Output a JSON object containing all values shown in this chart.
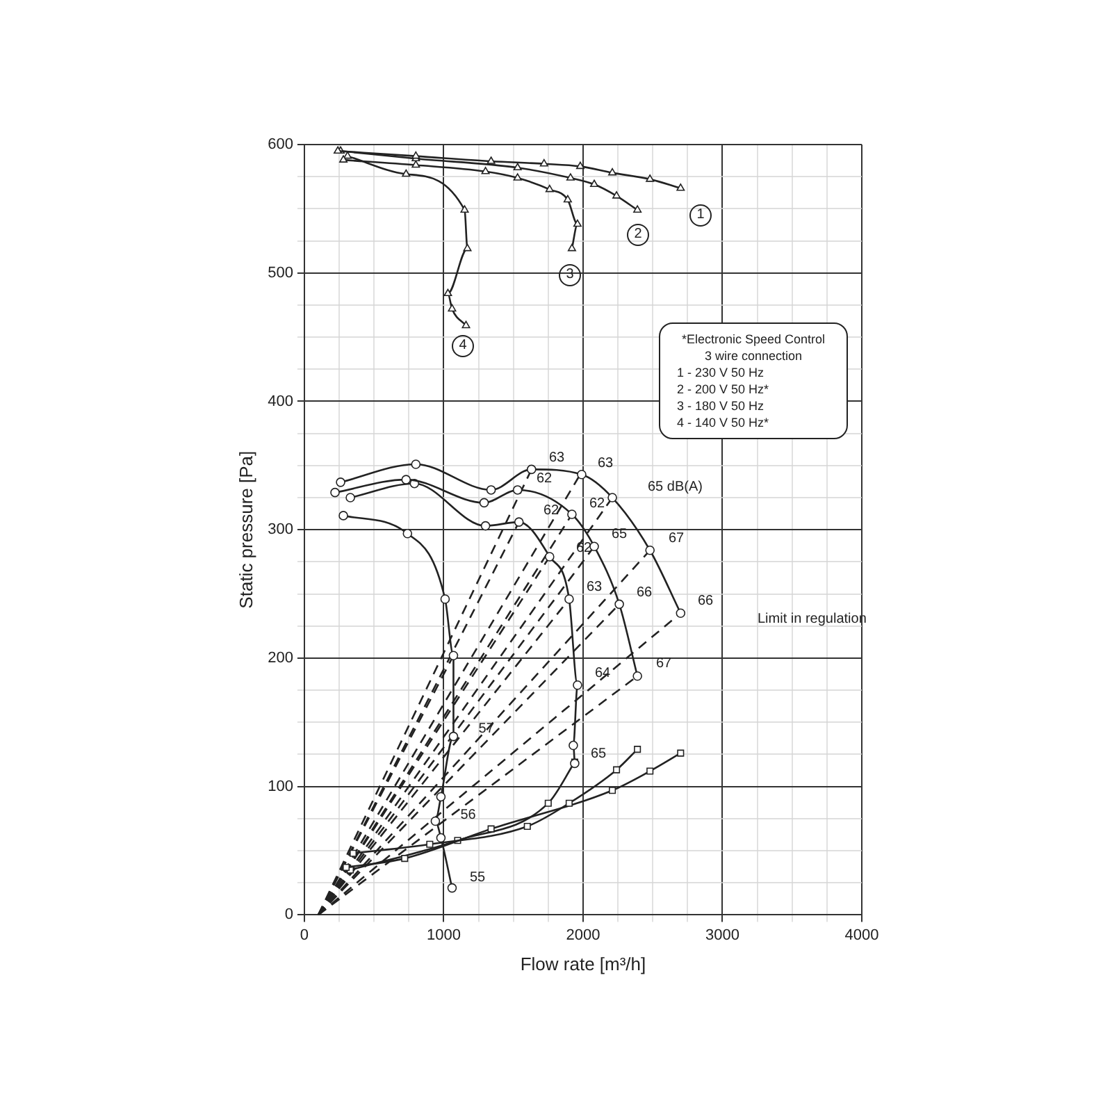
{
  "chart_data": {
    "type": "line",
    "xlabel": "Flow rate [m³/h]",
    "ylabel": "Static pressure [Pa]",
    "xlim": [
      0,
      4000
    ],
    "ylim": [
      0,
      600
    ],
    "xticks": [
      0,
      {
        "value": 250,
        "label": null
      },
      {
        "value": 500,
        "label": null
      },
      {
        "value": 750,
        "label": null
      },
      1000,
      {
        "value": 1250,
        "label": null
      },
      {
        "value": 1500,
        "label": null
      },
      {
        "value": 1750,
        "label": null
      },
      2000,
      {
        "value": 2250,
        "label": null
      },
      {
        "value": 2500,
        "label": null
      },
      {
        "value": 2750,
        "label": null
      },
      3000,
      {
        "value": 3250,
        "label": null
      },
      {
        "value": 3500,
        "label": null
      },
      {
        "value": 3750,
        "label": null
      },
      4000
    ],
    "yticks": [
      0,
      {
        "value": 25,
        "label": null
      },
      {
        "value": 50,
        "label": null
      },
      {
        "value": 75,
        "label": null
      },
      100,
      {
        "value": 125,
        "label": null
      },
      {
        "value": 150,
        "label": null
      },
      {
        "value": 175,
        "label": null
      },
      200,
      {
        "value": 225,
        "label": null
      },
      {
        "value": 250,
        "label": null
      },
      {
        "value": 275,
        "label": null
      },
      300,
      {
        "value": 325,
        "label": null
      },
      {
        "value": 350,
        "label": null
      },
      {
        "value": 375,
        "label": null
      },
      400,
      {
        "value": 425,
        "label": null
      },
      {
        "value": 450,
        "label": null
      },
      {
        "value": 475,
        "label": null
      },
      500,
      {
        "value": 525,
        "label": null
      },
      {
        "value": 550,
        "label": null
      },
      {
        "value": 575,
        "label": null
      },
      600
    ],
    "grid": true,
    "legend": false,
    "series": [
      {
        "color": "#222222",
        "marker": "triangle",
        "x": [
          240,
          800,
          1340,
          1720,
          1980,
          2210,
          2480,
          2700
        ],
        "values": [
          595,
          591,
          587,
          585,
          583,
          578,
          573,
          566
        ]
      },
      {
        "color": "#222222",
        "marker": "triangle",
        "x": [
          260,
          800,
          1530,
          1910,
          2080,
          2240,
          2390
        ],
        "values": [
          595,
          589,
          582,
          574,
          569,
          560,
          549
        ]
      },
      {
        "color": "#222222",
        "marker": "triangle",
        "x": [
          280,
          800,
          1300,
          1530,
          1760,
          1890,
          1960,
          1920
        ],
        "values": [
          588,
          584,
          579,
          574,
          565,
          557,
          538,
          519
        ]
      },
      {
        "color": "#222222",
        "marker": "triangle",
        "x": [
          310,
          730,
          1150,
          1170,
          1030,
          1060,
          1160
        ],
        "values": [
          591,
          577,
          549,
          519,
          484,
          472,
          459
        ]
      },
      {
        "color": "#222222",
        "marker": "circle",
        "x": [
          260,
          800,
          1340,
          1630,
          1990,
          2210,
          2480,
          2700
        ],
        "values": [
          337,
          351,
          331,
          347,
          343,
          325,
          284,
          235
        ]
      },
      {
        "color": "#222222",
        "marker": "circle",
        "x": [
          220,
          730,
          1290,
          1530,
          1920,
          2080,
          2260,
          2390
        ],
        "values": [
          329,
          339,
          321,
          331,
          312,
          287,
          242,
          186
        ]
      },
      {
        "color": "#222222",
        "marker": "circle",
        "x": [
          330,
          790,
          1300,
          1540,
          1760,
          1900,
          1960,
          1930,
          1940
        ],
        "values": [
          325,
          336,
          303,
          306,
          279,
          246,
          179,
          132,
          118
        ]
      },
      {
        "color": "#222222",
        "marker": "circle",
        "x": [
          280,
          740,
          1010,
          1070,
          1070,
          980,
          940,
          980,
          1060
        ],
        "values": [
          311,
          297,
          246,
          202,
          139,
          92,
          73,
          60,
          21
        ]
      },
      {
        "color": "#222222",
        "marker": "square",
        "x": [
          350,
          900,
          1600,
          1900,
          2240,
          2390
        ],
        "values": [
          48,
          55,
          69,
          87,
          113,
          129
        ]
      },
      {
        "color": "#222222",
        "marker": "square",
        "x": [
          300,
          720,
          1340,
          2210,
          2480,
          2700
        ],
        "values": [
          37,
          44,
          67,
          97,
          112,
          126
        ]
      },
      {
        "color": "#222222",
        "marker": "square",
        "x": [
          330,
          1100,
          1750,
          1940
        ],
        "values": [
          35,
          58,
          87,
          119
        ]
      },
      {
        "color": "#222222",
        "marker": "none",
        "line_style": "dashed",
        "x": [
          100,
          1060
        ],
        "values": [
          0,
          200
        ]
      },
      {
        "color": "#222222",
        "marker": "none",
        "line_style": "dashed",
        "x": [
          100,
          1540
        ],
        "values": [
          0,
          306
        ]
      },
      {
        "color": "#222222",
        "marker": "none",
        "line_style": "dashed",
        "x": [
          100,
          1630
        ],
        "values": [
          0,
          347
        ]
      },
      {
        "color": "#222222",
        "marker": "none",
        "line_style": "dashed",
        "x": [
          100,
          1760
        ],
        "values": [
          0,
          279
        ]
      },
      {
        "color": "#222222",
        "marker": "none",
        "line_style": "dashed",
        "x": [
          100,
          1920
        ],
        "values": [
          0,
          312
        ]
      },
      {
        "color": "#222222",
        "marker": "none",
        "line_style": "dashed",
        "x": [
          100,
          1990
        ],
        "values": [
          0,
          345
        ]
      },
      {
        "color": "#222222",
        "marker": "none",
        "line_style": "dashed",
        "x": [
          100,
          1900
        ],
        "values": [
          0,
          246
        ]
      },
      {
        "color": "#222222",
        "marker": "none",
        "line_style": "dashed",
        "x": [
          100,
          2080
        ],
        "values": [
          0,
          287
        ]
      },
      {
        "color": "#222222",
        "marker": "none",
        "line_style": "dashed",
        "x": [
          100,
          2210
        ],
        "values": [
          0,
          325
        ]
      },
      {
        "color": "#222222",
        "marker": "none",
        "line_style": "dashed",
        "x": [
          100,
          2260
        ],
        "values": [
          0,
          242
        ]
      },
      {
        "color": "#222222",
        "marker": "none",
        "line_style": "dashed",
        "x": [
          100,
          2480
        ],
        "values": [
          0,
          284
        ]
      },
      {
        "color": "#222222",
        "marker": "none",
        "line_style": "dashed",
        "x": [
          100,
          2390
        ],
        "values": [
          0,
          186
        ]
      },
      {
        "color": "#222222",
        "marker": "none",
        "line_style": "dashed",
        "x": [
          100,
          2700
        ],
        "values": [
          0,
          235
        ]
      }
    ],
    "annotations": [
      "*Electronic Speed Control",
      "3 wire connection",
      "1 - 230 V 50 Hz",
      "2 - 200 V 50 Hz*",
      "3 - 180 V 50 Hz",
      "4 - 140 V 50 Hz*",
      "1",
      "2",
      "3",
      "4",
      "63",
      "63",
      "65 dB(A)",
      "62",
      "62",
      "62",
      "65",
      "67",
      "63",
      "66",
      "66",
      "67",
      "64",
      "65",
      "55",
      "Limit in regulation",
      {
        "text": "62",
        "x": 1900,
        "y": 286
      },
      {
        "text": "57",
        "x": 1200,
        "y": 145
      },
      {
        "text": "56",
        "x": 1070,
        "y": 78
      }
    ]
  }
}
